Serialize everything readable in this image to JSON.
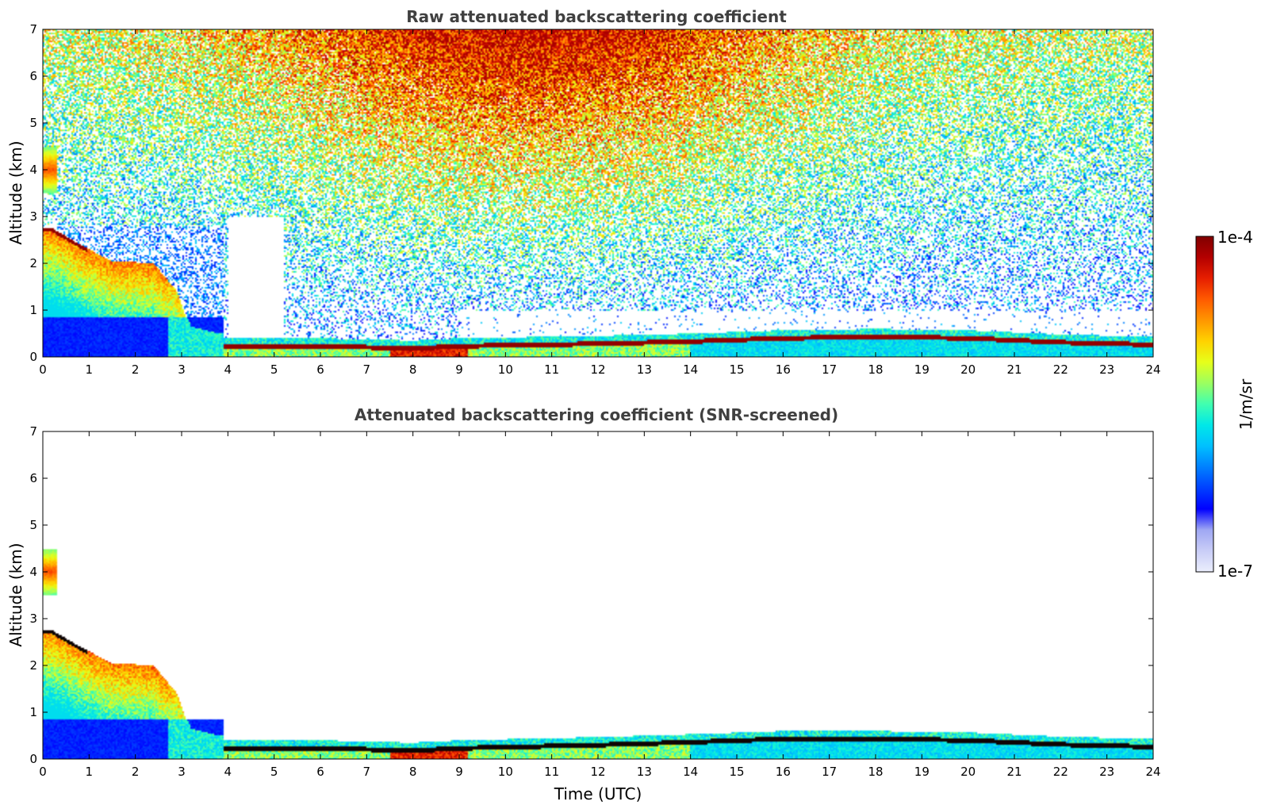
{
  "chart_data": [
    {
      "type": "heatmap",
      "title": "Raw attenuated backscattering coefficient",
      "xlabel": "",
      "ylabel": "Altitude (km)",
      "xlim": [
        0,
        24
      ],
      "ylim": [
        0,
        7
      ],
      "x_ticks": [
        "0",
        "1",
        "2",
        "3",
        "4",
        "5",
        "6",
        "7",
        "8",
        "9",
        "10",
        "11",
        "12",
        "13",
        "14",
        "15",
        "16",
        "17",
        "18",
        "19",
        "20",
        "21",
        "22",
        "23",
        "24"
      ],
      "y_ticks": [
        "0",
        "1",
        "2",
        "3",
        "4",
        "5",
        "6",
        "7"
      ],
      "colorscale": "jet",
      "features": {
        "boundary_layer_top_km": [
          {
            "t": 3.9,
            "z": 0.25
          },
          {
            "t": 6,
            "z": 0.25
          },
          {
            "t": 8,
            "z": 0.2
          },
          {
            "t": 9,
            "z": 0.25
          },
          {
            "t": 12,
            "z": 0.3
          },
          {
            "t": 14,
            "z": 0.35
          },
          {
            "t": 16,
            "z": 0.42
          },
          {
            "t": 18,
            "z": 0.45
          },
          {
            "t": 20,
            "z": 0.42
          },
          {
            "t": 22,
            "z": 0.33
          },
          {
            "t": 24,
            "z": 0.28
          }
        ],
        "descending_cloud_top_km": [
          {
            "t": 0.2,
            "z": 2.75
          },
          {
            "t": 0.9,
            "z": 2.35
          },
          {
            "t": 1.5,
            "z": 2.05
          },
          {
            "t": 2.4,
            "z": 2.0
          },
          {
            "t": 2.9,
            "z": 1.4
          },
          {
            "t": 3.2,
            "z": 0.55
          },
          {
            "t": 3.8,
            "z": 0.4
          }
        ],
        "elevated_layer_km": {
          "t_start": 0,
          "t_end": 0.3,
          "z_low": 3.5,
          "z_high": 4.5
        },
        "noise_peak_near_time": 10.5,
        "noise_free_gap_time": [
          4,
          5.2
        ]
      }
    },
    {
      "type": "heatmap",
      "title": "Attenuated backscattering coefficient (SNR-screened)",
      "xlabel": "Time (UTC)",
      "ylabel": "Altitude (km)",
      "xlim": [
        0,
        24
      ],
      "ylim": [
        0,
        7
      ],
      "x_ticks": [
        "0",
        "1",
        "2",
        "3",
        "4",
        "5",
        "6",
        "7",
        "8",
        "9",
        "10",
        "11",
        "12",
        "13",
        "14",
        "15",
        "16",
        "17",
        "18",
        "19",
        "20",
        "21",
        "22",
        "23",
        "24"
      ],
      "y_ticks": [
        "0",
        "1",
        "2",
        "3",
        "4",
        "5",
        "6",
        "7"
      ],
      "colorscale": "jet",
      "features": {
        "boundary_layer_top_km": [
          {
            "t": 3.9,
            "z": 0.25
          },
          {
            "t": 6,
            "z": 0.25
          },
          {
            "t": 8,
            "z": 0.2
          },
          {
            "t": 9,
            "z": 0.25
          },
          {
            "t": 12,
            "z": 0.32
          },
          {
            "t": 14,
            "z": 0.38
          },
          {
            "t": 16,
            "z": 0.45
          },
          {
            "t": 18,
            "z": 0.45
          },
          {
            "t": 20,
            "z": 0.42
          },
          {
            "t": 22,
            "z": 0.33
          },
          {
            "t": 24,
            "z": 0.28
          }
        ],
        "descending_cloud_top_km": [
          {
            "t": 0.2,
            "z": 2.75
          },
          {
            "t": 0.9,
            "z": 2.35
          },
          {
            "t": 1.5,
            "z": 2.05
          },
          {
            "t": 2.4,
            "z": 2.0
          },
          {
            "t": 2.9,
            "z": 1.4
          },
          {
            "t": 3.2,
            "z": 0.55
          },
          {
            "t": 3.8,
            "z": 0.4
          }
        ],
        "elevated_layer_km": {
          "t_start": 0,
          "t_end": 0.3,
          "z_low": 3.5,
          "z_high": 4.5
        }
      }
    }
  ],
  "colorbar": {
    "label": "1/m/sr",
    "max_label": "1e-4",
    "min_label": "1e-7",
    "min_value": 1e-07,
    "max_value": 0.0001,
    "scale": "log",
    "colors": [
      "#ebeefc",
      "#c9cdf7",
      "#9fa7f3",
      "#0000ff",
      "#0040ff",
      "#0080ff",
      "#00c0ff",
      "#00e8e8",
      "#40ffb0",
      "#9bff60",
      "#e6ff1a",
      "#ffd200",
      "#ff9600",
      "#ff5a00",
      "#e61e00",
      "#b40000",
      "#800000"
    ]
  }
}
